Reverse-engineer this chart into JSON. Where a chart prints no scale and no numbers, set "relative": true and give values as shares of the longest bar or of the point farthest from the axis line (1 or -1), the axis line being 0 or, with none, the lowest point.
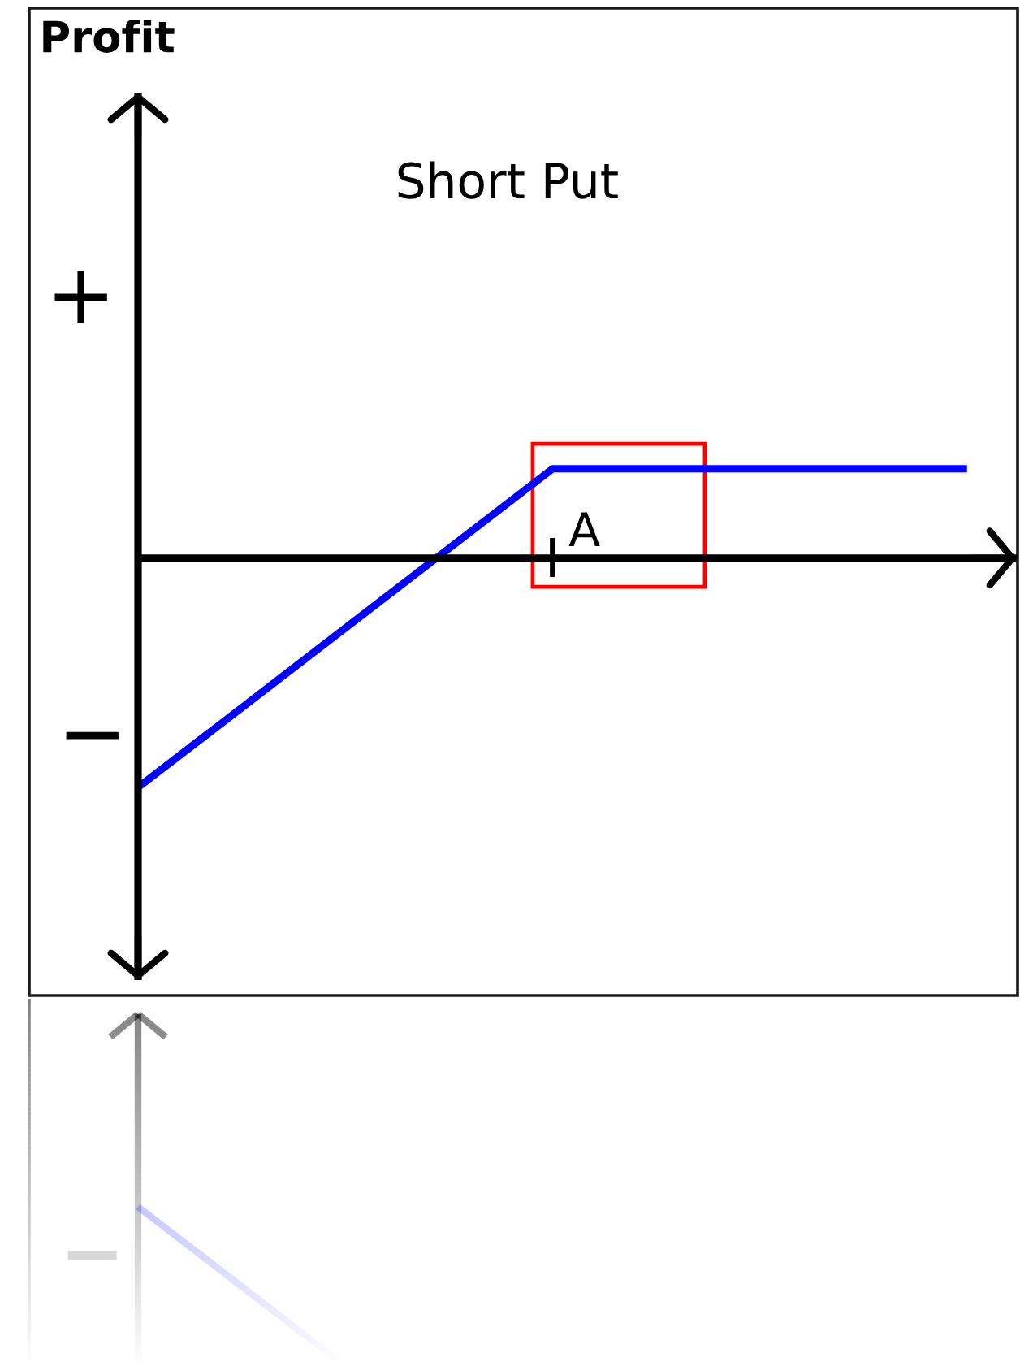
{
  "chart_data": {
    "type": "line",
    "title": "Short Put",
    "relative": true,
    "categories": [
      null,
      null,
      null
    ],
    "values": [
      -1,
      0.39,
      0.39
    ],
    "color": "#0000ff",
    "line_style": "solid",
    "annotations": [
      "Profit",
      "+",
      "−",
      "A"
    ]
  }
}
